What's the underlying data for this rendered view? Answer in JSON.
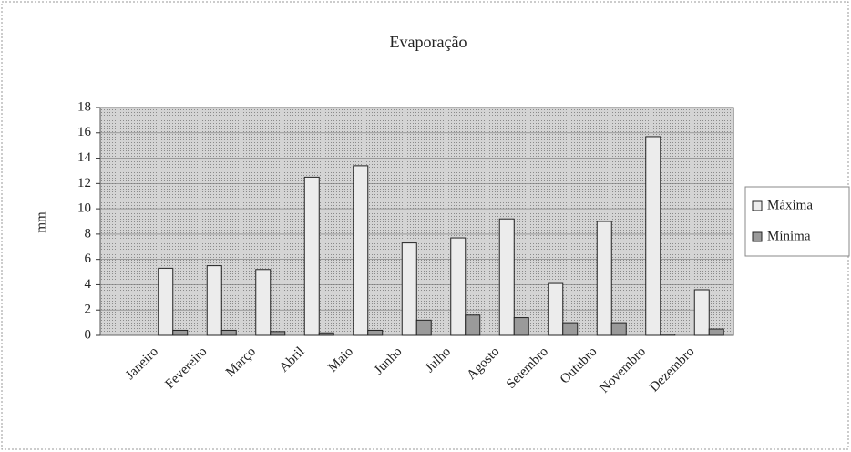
{
  "chart_data": {
    "type": "bar",
    "title": "Evaporação",
    "ylabel": "mm",
    "categories": [
      "Janeiro",
      "Fevereiro",
      "Março",
      "Abril",
      "Maio",
      "Junho",
      "Julho",
      "Agosto",
      "Setembro",
      "Outubro",
      "Novembro",
      "Dezembro"
    ],
    "series": [
      {
        "name": "Máxima",
        "color": "#ececec",
        "values": [
          5.3,
          5.5,
          5.2,
          12.5,
          13.4,
          7.3,
          7.7,
          9.2,
          4.1,
          9.0,
          15.7,
          3.6
        ]
      },
      {
        "name": "Mínima",
        "color": "#9a9a9a",
        "values": [
          0.4,
          0.4,
          0.3,
          0.2,
          0.4,
          1.2,
          1.6,
          1.4,
          1.0,
          1.0,
          0.1,
          0.5
        ]
      }
    ],
    "ylim": [
      0,
      18
    ],
    "yticks": [
      0,
      2,
      4,
      6,
      8,
      10,
      12,
      14,
      16,
      18
    ],
    "grid": true,
    "legend": "right"
  }
}
